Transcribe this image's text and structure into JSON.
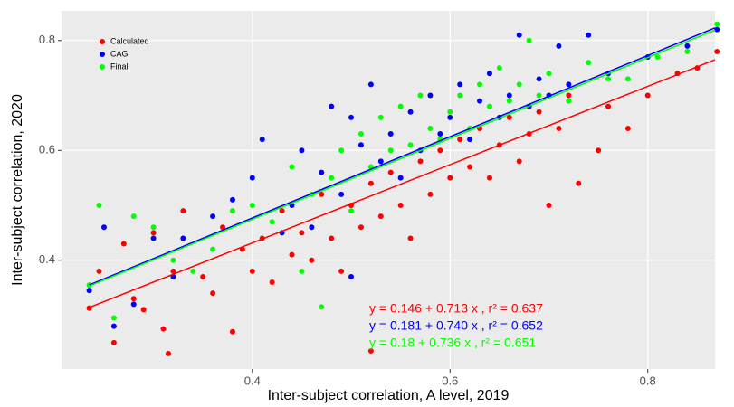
{
  "chart_data": {
    "type": "scatter",
    "x_label": "Inter-subject correlation, A level, 2019",
    "y_label": "Inter-subject correlation, 2020",
    "xlim": [
      0.207,
      0.868
    ],
    "ylim": [
      0.202,
      0.854
    ],
    "xticks": [
      0.4,
      0.6,
      0.8
    ],
    "yticks": [
      0.4,
      0.6,
      0.8
    ],
    "grid": true,
    "legend": "top-left",
    "series": [
      {
        "name": "Calculated",
        "color": "#ff0000",
        "x": [
          0.235,
          0.245,
          0.26,
          0.27,
          0.28,
          0.29,
          0.3,
          0.31,
          0.315,
          0.32,
          0.33,
          0.35,
          0.36,
          0.37,
          0.38,
          0.39,
          0.4,
          0.41,
          0.42,
          0.43,
          0.44,
          0.45,
          0.46,
          0.47,
          0.48,
          0.49,
          0.5,
          0.51,
          0.52,
          0.52,
          0.53,
          0.54,
          0.55,
          0.56,
          0.57,
          0.58,
          0.59,
          0.6,
          0.61,
          0.62,
          0.63,
          0.64,
          0.65,
          0.66,
          0.67,
          0.68,
          0.69,
          0.7,
          0.71,
          0.72,
          0.73,
          0.75,
          0.76,
          0.78,
          0.8,
          0.83,
          0.85,
          0.87
        ],
        "values": [
          0.313,
          0.38,
          0.25,
          0.43,
          0.33,
          0.31,
          0.45,
          0.275,
          0.23,
          0.38,
          0.49,
          0.37,
          0.34,
          0.46,
          0.27,
          0.42,
          0.38,
          0.44,
          0.36,
          0.49,
          0.41,
          0.45,
          0.4,
          0.52,
          0.44,
          0.38,
          0.5,
          0.46,
          0.54,
          0.235,
          0.48,
          0.56,
          0.5,
          0.44,
          0.58,
          0.52,
          0.6,
          0.55,
          0.62,
          0.57,
          0.64,
          0.55,
          0.61,
          0.66,
          0.58,
          0.63,
          0.67,
          0.5,
          0.64,
          0.7,
          0.54,
          0.6,
          0.68,
          0.64,
          0.7,
          0.74,
          0.75,
          0.78
        ],
        "fit": {
          "x": [
            0.235,
            0.868
          ],
          "values": [
            0.314,
            0.765
          ]
        }
      },
      {
        "name": "CAG",
        "color": "#0000ff",
        "x": [
          0.235,
          0.25,
          0.26,
          0.28,
          0.3,
          0.32,
          0.33,
          0.36,
          0.38,
          0.4,
          0.41,
          0.43,
          0.44,
          0.45,
          0.46,
          0.47,
          0.48,
          0.49,
          0.5,
          0.5,
          0.51,
          0.52,
          0.53,
          0.54,
          0.55,
          0.56,
          0.57,
          0.58,
          0.59,
          0.6,
          0.61,
          0.62,
          0.63,
          0.64,
          0.65,
          0.66,
          0.67,
          0.68,
          0.69,
          0.7,
          0.71,
          0.72,
          0.74,
          0.76,
          0.8,
          0.84,
          0.87
        ],
        "values": [
          0.345,
          0.46,
          0.28,
          0.32,
          0.44,
          0.37,
          0.44,
          0.48,
          0.51,
          0.55,
          0.62,
          0.45,
          0.5,
          0.6,
          0.46,
          0.56,
          0.68,
          0.52,
          0.66,
          0.37,
          0.61,
          0.72,
          0.58,
          0.63,
          0.55,
          0.67,
          0.6,
          0.7,
          0.63,
          0.66,
          0.72,
          0.62,
          0.69,
          0.74,
          0.66,
          0.7,
          0.81,
          0.68,
          0.73,
          0.7,
          0.79,
          0.72,
          0.81,
          0.74,
          0.77,
          0.79,
          0.82
        ],
        "fit": {
          "x": [
            0.235,
            0.868
          ],
          "values": [
            0.355,
            0.823
          ]
        }
      },
      {
        "name": "Final",
        "color": "#00ff00",
        "x": [
          0.235,
          0.245,
          0.26,
          0.28,
          0.3,
          0.32,
          0.34,
          0.36,
          0.38,
          0.4,
          0.42,
          0.44,
          0.45,
          0.46,
          0.47,
          0.48,
          0.49,
          0.5,
          0.51,
          0.52,
          0.53,
          0.54,
          0.55,
          0.56,
          0.57,
          0.58,
          0.59,
          0.6,
          0.61,
          0.62,
          0.63,
          0.64,
          0.65,
          0.66,
          0.67,
          0.68,
          0.69,
          0.7,
          0.72,
          0.74,
          0.76,
          0.78,
          0.81,
          0.84,
          0.87
        ],
        "values": [
          0.355,
          0.5,
          0.295,
          0.48,
          0.46,
          0.4,
          0.38,
          0.42,
          0.49,
          0.5,
          0.47,
          0.57,
          0.38,
          0.52,
          0.315,
          0.55,
          0.6,
          0.49,
          0.63,
          0.57,
          0.66,
          0.6,
          0.68,
          0.61,
          0.7,
          0.64,
          0.62,
          0.67,
          0.7,
          0.64,
          0.72,
          0.68,
          0.75,
          0.69,
          0.72,
          0.8,
          0.7,
          0.74,
          0.69,
          0.76,
          0.73,
          0.73,
          0.77,
          0.78,
          0.83
        ],
        "fit": {
          "x": [
            0.235,
            0.868
          ],
          "values": [
            0.353,
            0.819
          ]
        }
      }
    ],
    "annotations": [
      {
        "text": "y = 0.146 + 0.713 x , r² = 0.637",
        "color": "#ff0000"
      },
      {
        "text": "y = 0.181 + 0.740 x , r² = 0.652",
        "color": "#0000ff"
      },
      {
        "text": "y = 0.18 + 0.736 x , r² = 0.651",
        "color": "#00ff00"
      }
    ]
  }
}
